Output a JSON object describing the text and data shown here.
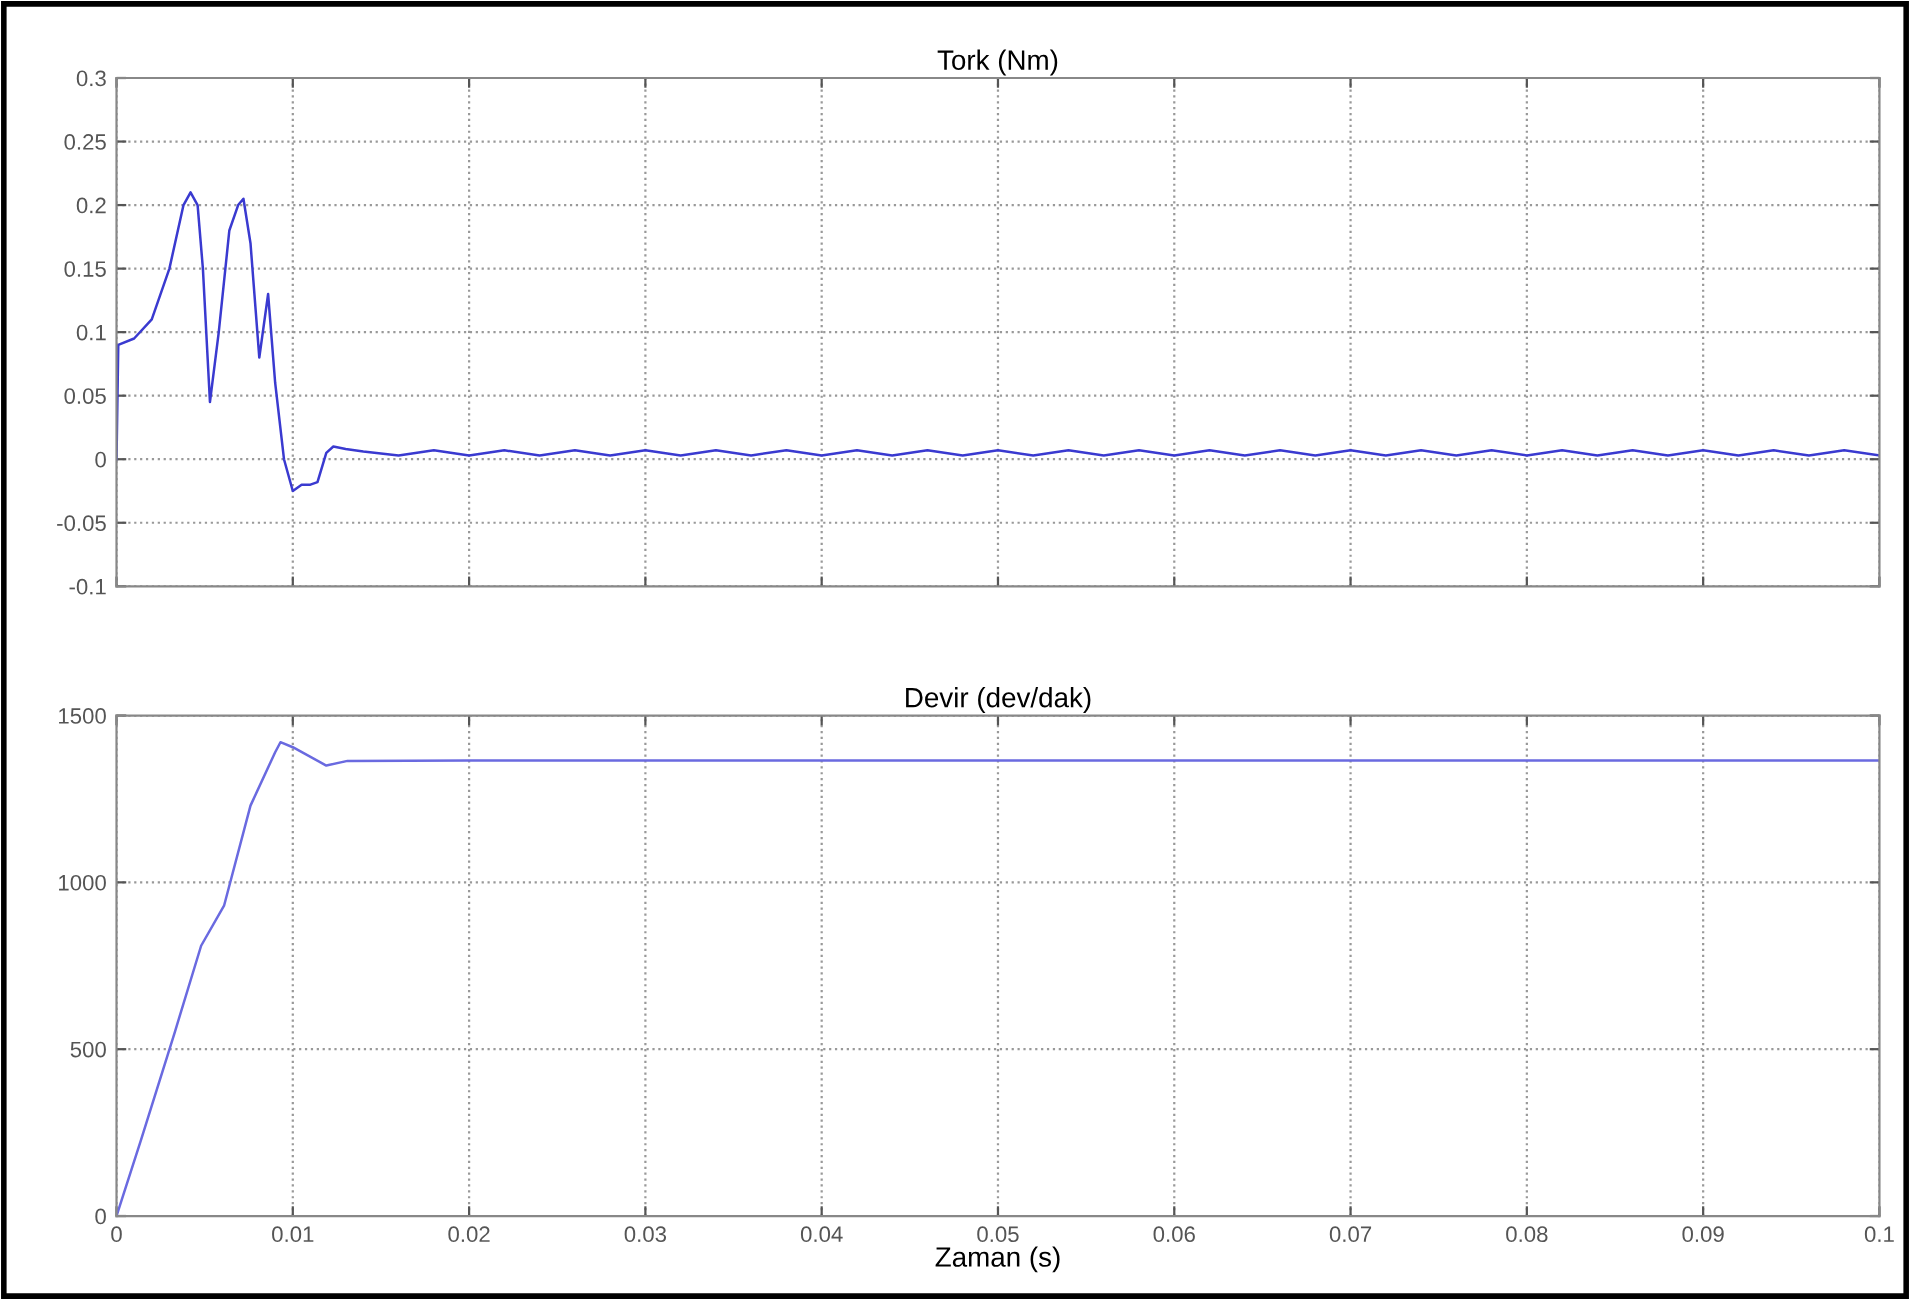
{
  "chart_data": [
    {
      "type": "line",
      "title": "Tork (Nm)",
      "xlim": [
        0,
        0.1
      ],
      "xticks": [
        0,
        0.01,
        0.02,
        0.03,
        0.04,
        0.05,
        0.06,
        0.07,
        0.08,
        0.09,
        0.1
      ],
      "ylim": [
        -0.1,
        0.3
      ],
      "yticks": [
        -0.1,
        -0.05,
        0,
        0.05,
        0.1,
        0.15,
        0.2,
        0.25,
        0.3
      ],
      "grid": true,
      "tick_labels": "y",
      "line_style": "solid",
      "series": [
        {
          "color": "#3a3ad0",
          "x": [
            0,
            0.0001,
            0.001,
            0.002,
            0.003,
            0.0038,
            0.0042,
            0.0046,
            0.0049,
            0.0053,
            0.0058,
            0.0064,
            0.0069,
            0.0072,
            0.0076,
            0.0081,
            0.0086,
            0.009,
            0.0095,
            0.01,
            0.0105,
            0.011,
            0.0114,
            0.0119,
            0.0123,
            0.013,
            0.014,
            0.016,
            0.018,
            0.02,
            0.022,
            0.024,
            0.026,
            0.028,
            0.03,
            0.032,
            0.034,
            0.036,
            0.038,
            0.04,
            0.042,
            0.044,
            0.046,
            0.048,
            0.05,
            0.052,
            0.054,
            0.056,
            0.058,
            0.06,
            0.062,
            0.064,
            0.066,
            0.068,
            0.07,
            0.072,
            0.074,
            0.076,
            0.078,
            0.08,
            0.082,
            0.084,
            0.086,
            0.088,
            0.09,
            0.092,
            0.094,
            0.096,
            0.098,
            0.1
          ],
          "values": [
            0,
            0.09,
            0.095,
            0.11,
            0.15,
            0.2,
            0.21,
            0.2,
            0.15,
            0.045,
            0.1,
            0.18,
            0.2,
            0.205,
            0.17,
            0.08,
            0.13,
            0.06,
            0.0,
            -0.025,
            -0.02,
            -0.02,
            -0.018,
            0.005,
            0.01,
            0.008,
            0.006,
            0.003,
            0.007,
            0.003,
            0.007,
            0.003,
            0.007,
            0.003,
            0.007,
            0.003,
            0.007,
            0.003,
            0.007,
            0.003,
            0.007,
            0.003,
            0.007,
            0.003,
            0.007,
            0.003,
            0.007,
            0.003,
            0.007,
            0.003,
            0.007,
            0.003,
            0.007,
            0.003,
            0.007,
            0.003,
            0.007,
            0.003,
            0.007,
            0.003,
            0.007,
            0.003,
            0.007,
            0.003,
            0.007,
            0.003,
            0.007,
            0.003,
            0.007,
            0.003
          ]
        }
      ]
    },
    {
      "type": "line",
      "title": "Devir (dev/dak)",
      "xlabel": "Zaman (s)",
      "xlim": [
        0,
        0.1
      ],
      "xticks": [
        0,
        0.01,
        0.02,
        0.03,
        0.04,
        0.05,
        0.06,
        0.07,
        0.08,
        0.09,
        0.1
      ],
      "ylim": [
        0,
        1500
      ],
      "yticks": [
        0,
        500,
        1000,
        1500
      ],
      "grid": true,
      "line_style": "solid",
      "series": [
        {
          "color": "#6a6ae0",
          "x": [
            0,
            0.0014,
            0.0033,
            0.0048,
            0.0061,
            0.0076,
            0.009,
            0.0093,
            0.01,
            0.0119,
            0.0131,
            0.02,
            0.1
          ],
          "values": [
            0,
            230,
            550,
            810,
            930,
            1230,
            1390,
            1420,
            1405,
            1350,
            1364,
            1365,
            1365
          ]
        }
      ]
    }
  ]
}
